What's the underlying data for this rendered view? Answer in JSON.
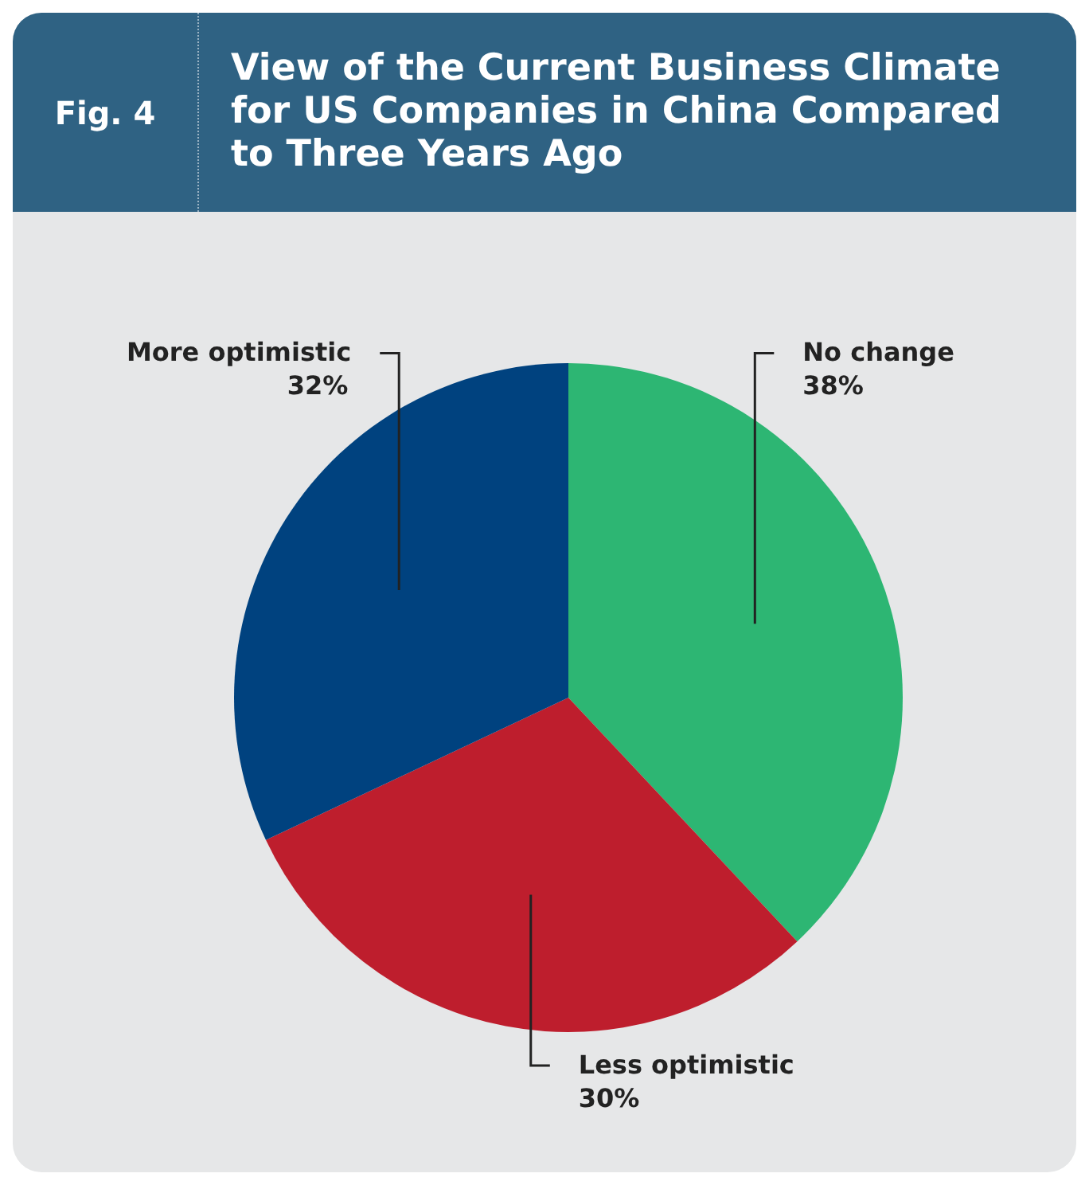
{
  "chart_data": {
    "type": "pie",
    "title": "View of the Current Business Climate for US Companies in China Compared to Three Years Ago",
    "annotations": [
      "Fig. 4"
    ],
    "categories": [
      "No change",
      "Less optimistic",
      "More optimistic"
    ],
    "values": [
      38,
      30,
      32
    ],
    "colors": [
      "#2db673",
      "#be1e2d",
      "#00427f"
    ],
    "value_labels": [
      "38%",
      "30%",
      "32%"
    ],
    "legend": false
  }
}
